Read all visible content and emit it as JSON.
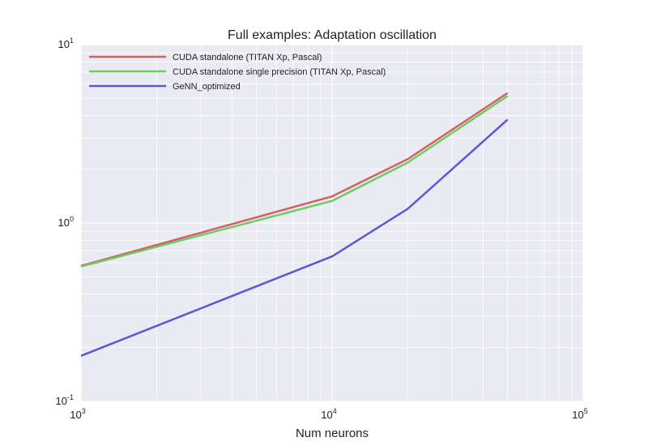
{
  "chart_data": {
    "type": "line",
    "title": "Full examples: Adaptation oscillation",
    "xlabel": "Num neurons",
    "ylabel": "",
    "xscale": "log",
    "yscale": "log",
    "xlim": [
      1000,
      100000
    ],
    "ylim": [
      0.1,
      10
    ],
    "grid": true,
    "legend_position": "top-left",
    "x_ticks": [
      {
        "base": "10",
        "exp": "3",
        "value": 1000
      },
      {
        "base": "10",
        "exp": "4",
        "value": 10000
      },
      {
        "base": "10",
        "exp": "5",
        "value": 100000
      }
    ],
    "y_ticks": [
      {
        "base": "10",
        "exp": "-1",
        "value": 0.1
      },
      {
        "base": "10",
        "exp": "0",
        "value": 1
      },
      {
        "base": "10",
        "exp": "1",
        "value": 10
      }
    ],
    "series": [
      {
        "name": "CUDA standalone (TITAN Xp, Pascal)",
        "color": "#d65f5f",
        "x": [
          1000,
          10000,
          20000,
          50000
        ],
        "y": [
          0.575,
          1.41,
          2.28,
          5.35
        ]
      },
      {
        "name": "CUDA standalone single precision (TITAN Xp, Pascal)",
        "color": "#6acc65",
        "x": [
          1000,
          10000,
          20000,
          50000
        ],
        "y": [
          0.57,
          1.33,
          2.18,
          5.15
        ]
      },
      {
        "name": "GeNN_optimized",
        "color": "#5d57d4",
        "x": [
          1000,
          10000,
          20000,
          50000
        ],
        "y": [
          0.18,
          0.65,
          1.2,
          3.8
        ]
      }
    ]
  },
  "colors": {
    "plot_background": "#eaeaf2",
    "grid": "#ffffff",
    "text": "#222222"
  }
}
